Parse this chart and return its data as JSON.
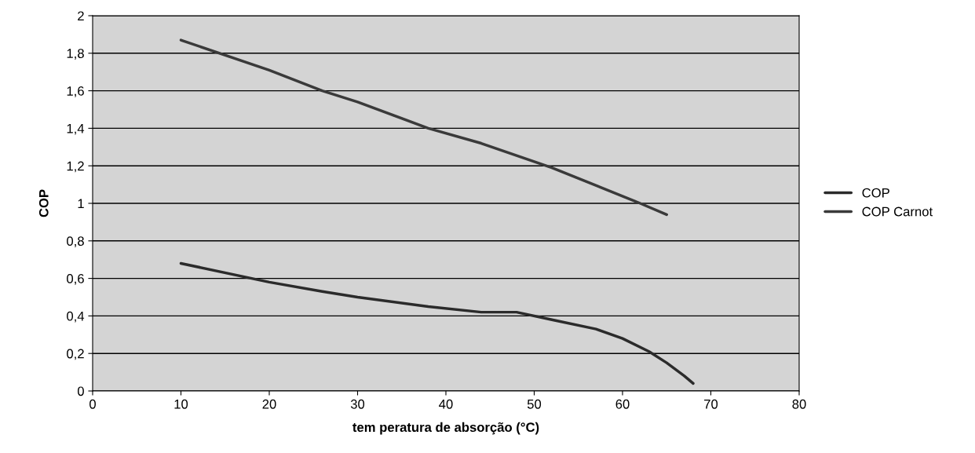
{
  "chart_data": {
    "type": "line",
    "xlabel": "tem peratura de absorção (°C)",
    "ylabel": "COP",
    "series": [
      {
        "name": "COP",
        "color": "#2b2b2b",
        "x": [
          10,
          20,
          26,
          30,
          38,
          44,
          48,
          52,
          57,
          60,
          63,
          65,
          67,
          68
        ],
        "values": [
          0.68,
          0.58,
          0.53,
          0.5,
          0.45,
          0.42,
          0.42,
          0.38,
          0.33,
          0.28,
          0.21,
          0.15,
          0.08,
          0.04
        ]
      },
      {
        "name": "COP Carnot",
        "color": "#3a3a3a",
        "x": [
          10,
          20,
          26,
          30,
          38,
          44,
          52,
          62,
          65
        ],
        "values": [
          1.87,
          1.71,
          1.6,
          1.54,
          1.4,
          1.32,
          1.19,
          1.0,
          0.94
        ]
      }
    ],
    "xlim": [
      0,
      80
    ],
    "xticks": [
      0,
      10,
      20,
      30,
      40,
      50,
      60,
      70,
      80
    ],
    "ylim": [
      0,
      2
    ],
    "yticks": [
      0,
      {
        "value": 0.2,
        "label": "0,2"
      },
      {
        "value": 0.4,
        "label": "0,4"
      },
      {
        "value": 0.6,
        "label": "0,6"
      },
      {
        "value": 0.8,
        "label": "0,8"
      },
      1,
      {
        "value": 1.2,
        "label": "1,2"
      },
      {
        "value": 1.4,
        "label": "1,4"
      },
      {
        "value": 1.6,
        "label": "1,6"
      },
      {
        "value": 1.8,
        "label": "1,8"
      },
      2
    ],
    "grid": "y",
    "legend": "right",
    "marker": "none",
    "line_style": "solid"
  }
}
